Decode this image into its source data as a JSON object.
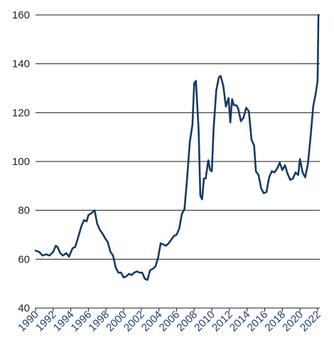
{
  "chart_data": {
    "type": "line",
    "title": "",
    "xlabel": "",
    "ylabel": "",
    "xlim": [
      1990,
      2022.25
    ],
    "ylim": [
      40,
      160
    ],
    "yticks": [
      40,
      60,
      80,
      100,
      120,
      140,
      160
    ],
    "xticks": [
      1990,
      1992,
      1994,
      1996,
      1998,
      2000,
      2002,
      2004,
      2006,
      2008,
      2010,
      2012,
      2014,
      2016,
      2018,
      2020,
      2022
    ],
    "grid": "horizontal",
    "legend": "none",
    "line_color": "#163a63",
    "x": [
      1990.0,
      1990.4,
      1990.8,
      1991.2,
      1991.6,
      1992.0,
      1992.3,
      1992.5,
      1992.8,
      1993.1,
      1993.5,
      1993.8,
      1994.2,
      1994.5,
      1994.8,
      1995.2,
      1995.5,
      1995.8,
      1996.0,
      1996.2,
      1996.4,
      1996.7,
      1997.0,
      1997.3,
      1997.6,
      1997.9,
      1998.2,
      1998.5,
      1998.8,
      1999.1,
      1999.4,
      1999.7,
      2000.0,
      2000.3,
      2000.6,
      2000.9,
      2001.2,
      2001.5,
      2001.8,
      2002.1,
      2002.4,
      2002.7,
      2003.0,
      2003.3,
      2003.6,
      2003.9,
      2004.2,
      2004.5,
      2004.8,
      2005.1,
      2005.4,
      2005.7,
      2006.0,
      2006.3,
      2006.6,
      2006.9,
      2007.2,
      2007.5,
      2007.8,
      2008.0,
      2008.2,
      2008.5,
      2008.7,
      2008.9,
      2009.1,
      2009.3,
      2009.6,
      2009.8,
      2010.0,
      2010.2,
      2010.5,
      2010.8,
      2011.0,
      2011.3,
      2011.6,
      2011.9,
      2012.1,
      2012.3,
      2012.5,
      2012.8,
      2013.0,
      2013.3,
      2013.6,
      2013.9,
      2014.2,
      2014.5,
      2014.8,
      2015.0,
      2015.3,
      2015.6,
      2015.9,
      2016.2,
      2016.5,
      2016.8,
      2017.1,
      2017.4,
      2017.7,
      2018.0,
      2018.3,
      2018.6,
      2018.9,
      2019.2,
      2019.5,
      2019.8,
      2020.0,
      2020.3,
      2020.6,
      2020.9,
      2021.2,
      2021.5,
      2021.8,
      2022.0,
      2022.1
    ],
    "series": [
      {
        "values": [
          63.5,
          63.0,
          61.5,
          62.0,
          61.5,
          63.0,
          65.5,
          65.0,
          62.5,
          61.5,
          62.5,
          61.0,
          64.5,
          65.0,
          68.5,
          73.5,
          76.0,
          75.5,
          78.0,
          78.5,
          79.0,
          80.0,
          74.5,
          72.0,
          70.5,
          68.5,
          67.0,
          63.0,
          61.5,
          56.5,
          54.5,
          54.5,
          52.5,
          53.0,
          54.0,
          53.5,
          54.5,
          55.0,
          54.5,
          54.5,
          52.0,
          51.5,
          55.5,
          56.0,
          57.0,
          60.5,
          66.5,
          66.0,
          65.5,
          66.5,
          68.0,
          69.5,
          70.0,
          72.5,
          78.5,
          80.5,
          93.0,
          108.0,
          115.0,
          132.0,
          133.0,
          113.0,
          86.0,
          84.5,
          93.0,
          93.0,
          100.5,
          96.5,
          96.0,
          113.0,
          129.0,
          134.5,
          135.0,
          131.0,
          122.5,
          126.0,
          116.0,
          125.5,
          123.0,
          123.0,
          121.5,
          116.5,
          118.0,
          122.0,
          120.5,
          109.0,
          106.5,
          96.0,
          94.5,
          89.0,
          87.0,
          87.5,
          93.5,
          96.0,
          95.5,
          97.0,
          99.5,
          96.5,
          98.5,
          95.0,
          92.5,
          93.0,
          95.5,
          94.5,
          101.0,
          95.5,
          93.5,
          99.0,
          110.0,
          122.5,
          128.0,
          133.0,
          160.0
        ]
      }
    ]
  }
}
